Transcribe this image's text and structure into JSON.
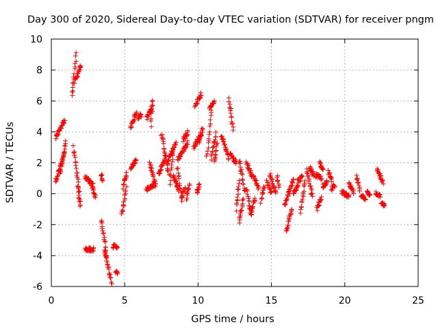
{
  "chart_data": {
    "type": "scatter",
    "title": "Day 300 of 2020, Sidereal Day-to-day VTEC variation (SDTVAR) for receiver pngm",
    "xlabel": "GPS time / hours",
    "ylabel": "SDTVAR / TECUs",
    "xlim": [
      0,
      25
    ],
    "ylim": [
      -6,
      10
    ],
    "x_ticks": [
      0,
      5,
      10,
      15,
      20,
      25
    ],
    "y_ticks": [
      -6,
      -4,
      -2,
      0,
      2,
      4,
      6,
      8,
      10
    ],
    "x_tick_labels": [
      "0",
      "5",
      "10",
      "15",
      "20",
      "25"
    ],
    "y_tick_labels": [
      "-6",
      "-4",
      "-2",
      "0",
      "2",
      "4",
      "6",
      "8",
      "10"
    ],
    "grid": true,
    "legend": "none",
    "marker": "plus",
    "point_color": "#ff0000",
    "series": [
      {
        "name": "SDTVAR",
        "segments": [
          [
            0.3,
            3.6,
            0.9,
            4.8
          ],
          [
            0.3,
            0.8,
            0.9,
            2.6
          ],
          [
            0.6,
            1.2,
            1.0,
            3.4
          ],
          [
            1.4,
            6.3,
            1.7,
            9.0
          ],
          [
            1.6,
            7.2,
            2.0,
            8.3
          ],
          [
            1.5,
            3.0,
            1.9,
            0.2
          ],
          [
            1.8,
            0.4,
            2.0,
            -0.8
          ],
          [
            2.3,
            1.1,
            2.8,
            0.6
          ],
          [
            2.3,
            -3.6,
            2.9,
            -3.6
          ],
          [
            2.8,
            0.5,
            3.0,
            -0.2
          ],
          [
            3.4,
            1.3,
            3.5,
            0.8
          ],
          [
            3.4,
            -1.7,
            3.8,
            -4.2
          ],
          [
            3.6,
            -3.6,
            4.1,
            -5.7
          ],
          [
            4.2,
            -3.4,
            4.5,
            -3.4
          ],
          [
            4.4,
            -5.1,
            4.5,
            -5.1
          ],
          [
            4.8,
            -1.4,
            5.1,
            0.4
          ],
          [
            4.9,
            0.4,
            5.1,
            1.3
          ],
          [
            5.4,
            1.6,
            5.8,
            2.2
          ],
          [
            5.4,
            4.3,
            5.8,
            5.3
          ],
          [
            5.9,
            4.9,
            6.1,
            5.1
          ],
          [
            6.5,
            0.3,
            7.1,
            0.6
          ],
          [
            6.5,
            4.9,
            6.9,
            5.7
          ],
          [
            6.8,
            4.4,
            6.9,
            6.1
          ],
          [
            6.7,
            2.0,
            7.1,
            0.6
          ],
          [
            7.3,
            1.2,
            7.8,
            2.4
          ],
          [
            7.5,
            3.9,
            8.0,
            1.2
          ],
          [
            7.9,
            2.0,
            8.5,
            3.3
          ],
          [
            8.1,
            0.7,
            8.3,
            2.8
          ],
          [
            8.3,
            1.2,
            8.7,
            0.2
          ],
          [
            8.6,
            1.7,
            8.9,
            -0.5
          ],
          [
            8.6,
            2.2,
            9.3,
            3.3
          ],
          [
            8.9,
            -0.2,
            9.1,
            0.4
          ],
          [
            9.0,
            3.5,
            9.3,
            4.0
          ],
          [
            9.2,
            -0.3,
            9.4,
            0.6
          ],
          [
            9.7,
            3.0,
            10.2,
            3.8
          ],
          [
            9.8,
            5.7,
            10.2,
            6.4
          ],
          [
            9.9,
            0.0,
            10.1,
            0.6
          ],
          [
            10.1,
            3.4,
            10.3,
            4.3
          ],
          [
            10.6,
            2.4,
            10.9,
            5.4
          ],
          [
            10.9,
            2.3,
            11.2,
            3.9
          ],
          [
            10.8,
            5.5,
            11.1,
            6.0
          ],
          [
            11.1,
            2.0,
            11.3,
            3.3
          ],
          [
            11.6,
            3.8,
            12.1,
            2.3
          ],
          [
            12.1,
            6.1,
            12.4,
            4.2
          ],
          [
            12.2,
            2.6,
            12.6,
            2.0
          ],
          [
            12.6,
            -1.0,
            12.8,
            0.8
          ],
          [
            12.8,
            2.2,
            13.2,
            0.1
          ],
          [
            12.8,
            -1.8,
            13.1,
            -0.3
          ],
          [
            13.3,
            0.3,
            13.6,
            -1.4
          ],
          [
            13.3,
            2.0,
            13.7,
            1.1
          ],
          [
            13.6,
            -1.2,
            13.9,
            -0.3
          ],
          [
            13.8,
            1.2,
            14.1,
            0.3
          ],
          [
            14.3,
            -0.5,
            14.5,
            0.5
          ],
          [
            14.7,
            0.8,
            15.0,
            0.0
          ],
          [
            14.9,
            1.2,
            15.3,
            0.1
          ],
          [
            15.4,
            1.1,
            15.5,
            0.5
          ],
          [
            15.9,
            -0.8,
            16.5,
            0.9
          ],
          [
            16.0,
            -2.5,
            16.4,
            -0.9
          ],
          [
            16.5,
            0.1,
            16.8,
            0.5
          ],
          [
            16.8,
            0.8,
            17.1,
            1.1
          ],
          [
            17.0,
            -1.2,
            17.3,
            0.8
          ],
          [
            17.4,
            1.5,
            17.8,
            -0.2
          ],
          [
            17.6,
            1.7,
            17.9,
            1.2
          ],
          [
            18.0,
            1.2,
            18.4,
            1.0
          ],
          [
            18.1,
            -1.0,
            18.4,
            -0.3
          ],
          [
            18.3,
            2.1,
            18.5,
            1.5
          ],
          [
            18.5,
            0.5,
            18.8,
            0.8
          ],
          [
            18.9,
            1.4,
            19.1,
            0.8
          ],
          [
            19.1,
            0.3,
            19.3,
            0.6
          ],
          [
            19.8,
            0.1,
            20.3,
            -0.2
          ],
          [
            20.3,
            0.6,
            20.6,
            0.1
          ],
          [
            20.8,
            1.1,
            21.0,
            0.3
          ],
          [
            21.1,
            -0.1,
            21.4,
            -0.4
          ],
          [
            21.5,
            0.2,
            21.7,
            -0.1
          ],
          [
            22.1,
            0.1,
            22.4,
            -0.2
          ],
          [
            22.2,
            1.6,
            22.6,
            0.7
          ],
          [
            22.5,
            -0.6,
            22.7,
            -0.8
          ]
        ]
      }
    ]
  }
}
